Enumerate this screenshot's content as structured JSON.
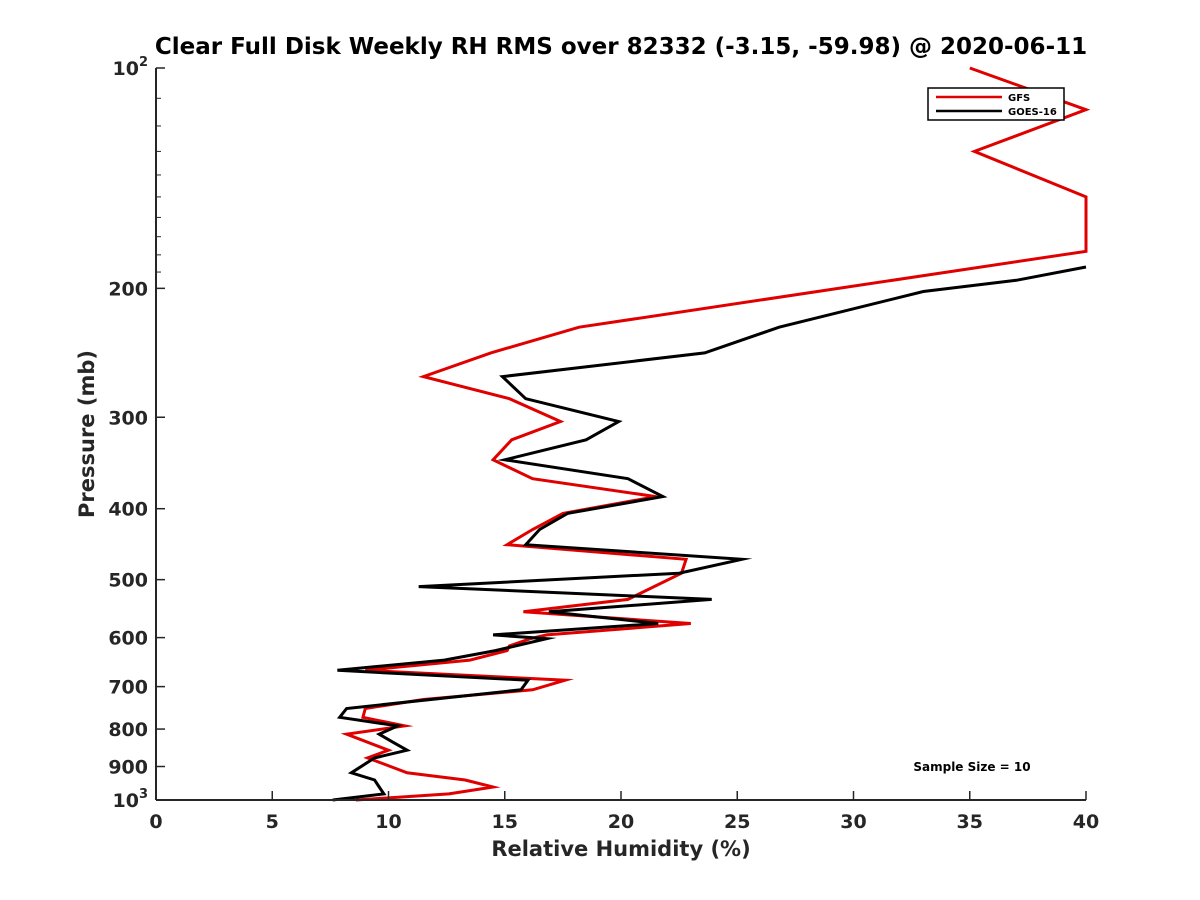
{
  "chart_data": {
    "type": "line",
    "title": "Clear Full Disk Weekly RH RMS over 82332 (-3.15, -59.98) @ 2020-06-11",
    "xlabel": "Relative Humidity (%)",
    "ylabel": "Pressure (mb)",
    "xlim": [
      0,
      40
    ],
    "ylim": [
      100,
      1000
    ],
    "yscale": "log",
    "y_reversed": true,
    "xticks": [
      {
        "value": 0,
        "label": "0"
      },
      {
        "value": 5,
        "label": "5"
      },
      {
        "value": 10,
        "label": "10"
      },
      {
        "value": 15,
        "label": "15"
      },
      {
        "value": 20,
        "label": "20"
      },
      {
        "value": 25,
        "label": "25"
      },
      {
        "value": 30,
        "label": "30"
      },
      {
        "value": 35,
        "label": "35"
      },
      {
        "value": 40,
        "label": "40"
      }
    ],
    "yticks": [
      {
        "value": 100,
        "base": "10",
        "exp": "2"
      },
      {
        "value": 200,
        "label": "200"
      },
      {
        "value": 300,
        "label": "300"
      },
      {
        "value": 400,
        "label": "400"
      },
      {
        "value": 500,
        "label": "500"
      },
      {
        "value": 600,
        "label": "600"
      },
      {
        "value": 700,
        "label": "700"
      },
      {
        "value": 800,
        "label": "800"
      },
      {
        "value": 900,
        "label": "900"
      },
      {
        "value": 1000,
        "base": "10",
        "exp": "3"
      }
    ],
    "grid": false,
    "legend_position": "top-right",
    "annotation": "Sample Size = 10",
    "series": [
      {
        "name": "GFS",
        "color": "#e00000",
        "points": [
          [
            35.0,
            100
          ],
          [
            40.0,
            114
          ],
          [
            35.2,
            130
          ],
          [
            40.0,
            150
          ],
          [
            40.0,
            174
          ],
          [
            40.0,
            178
          ],
          [
            18.2,
            226
          ],
          [
            14.4,
            245
          ],
          [
            11.5,
            264
          ],
          [
            15.2,
            283
          ],
          [
            17.4,
            304
          ],
          [
            15.3,
            322
          ],
          [
            14.5,
            343
          ],
          [
            16.2,
            364
          ],
          [
            21.5,
            385
          ],
          [
            17.5,
            406
          ],
          [
            16.2,
            427
          ],
          [
            15.1,
            448
          ],
          [
            22.8,
            469
          ],
          [
            22.6,
            490
          ],
          [
            20.3,
            532
          ],
          [
            15.8,
            553
          ],
          [
            23.0,
            574
          ],
          [
            16.8,
            595
          ],
          [
            16.1,
            602
          ],
          [
            15.2,
            616
          ],
          [
            15.1,
            625
          ],
          [
            13.5,
            644
          ],
          [
            9.0,
            665
          ],
          [
            17.6,
            686
          ],
          [
            16.2,
            707
          ],
          [
            11.5,
            729
          ],
          [
            9.0,
            750
          ],
          [
            8.9,
            771
          ],
          [
            10.7,
            792
          ],
          [
            8.2,
            813
          ],
          [
            10.0,
            855
          ],
          [
            9.1,
            876
          ],
          [
            10.8,
            918
          ],
          [
            13.3,
            939
          ],
          [
            14.5,
            960
          ],
          [
            12.6,
            981
          ],
          [
            8.6,
            1000
          ]
        ]
      },
      {
        "name": "GOES-16",
        "color": "#000000",
        "points": [
          [
            40.0,
            187
          ],
          [
            37.0,
            195
          ],
          [
            33.0,
            202
          ],
          [
            26.8,
            226
          ],
          [
            23.6,
            245
          ],
          [
            14.9,
            264
          ],
          [
            15.9,
            283
          ],
          [
            19.9,
            304
          ],
          [
            18.5,
            322
          ],
          [
            15.0,
            343
          ],
          [
            20.3,
            364
          ],
          [
            21.8,
            385
          ],
          [
            17.7,
            406
          ],
          [
            16.5,
            427
          ],
          [
            15.9,
            448
          ],
          [
            25.2,
            469
          ],
          [
            22.5,
            490
          ],
          [
            11.3,
            511
          ],
          [
            23.9,
            532
          ],
          [
            16.9,
            553
          ],
          [
            21.6,
            574
          ],
          [
            14.5,
            595
          ],
          [
            16.8,
            602
          ],
          [
            14.6,
            625
          ],
          [
            12.4,
            644
          ],
          [
            7.8,
            665
          ],
          [
            16.0,
            686
          ],
          [
            15.7,
            707
          ],
          [
            8.2,
            750
          ],
          [
            7.9,
            771
          ],
          [
            10.4,
            792
          ],
          [
            9.6,
            813
          ],
          [
            10.2,
            834
          ],
          [
            10.8,
            855
          ],
          [
            9.4,
            876
          ],
          [
            8.4,
            918
          ],
          [
            9.4,
            939
          ],
          [
            9.6,
            960
          ],
          [
            9.8,
            981
          ],
          [
            7.6,
            1000
          ]
        ]
      }
    ]
  }
}
